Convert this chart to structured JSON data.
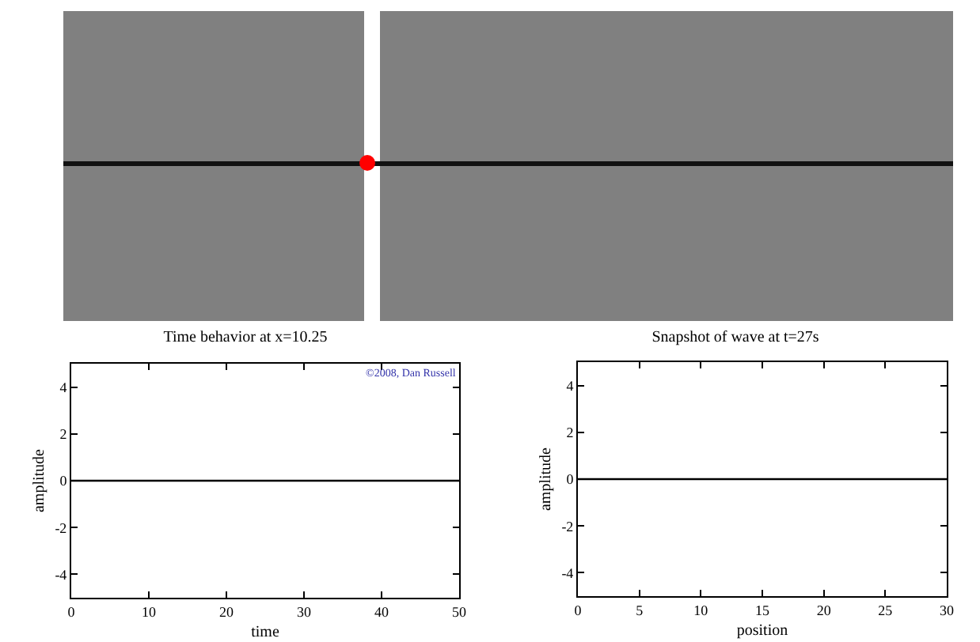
{
  "chart_data": [
    {
      "type": "line",
      "title": "Time behavior at x=10.25",
      "xlabel": "time",
      "ylabel": "amplitude",
      "x": [
        0,
        50
      ],
      "series": [
        {
          "color": "#000000",
          "values": [
            0,
            0
          ]
        }
      ],
      "xlim": [
        0,
        50
      ],
      "xticks": [
        0,
        10,
        20,
        30,
        40,
        50
      ],
      "ylim": [
        -5,
        5
      ],
      "yticks": [
        -4,
        -2,
        0,
        2,
        4
      ],
      "grid": false,
      "marker": "none",
      "line_style": "solid",
      "annotations": [
        "©2008, Dan Russell"
      ]
    },
    {
      "type": "line",
      "title": "Snapshot of wave at t=27s",
      "xlabel": "position",
      "ylabel": "amplitude",
      "x": [
        0,
        30
      ],
      "series": [
        {
          "color": "#000000",
          "values": [
            0,
            0
          ]
        }
      ],
      "xlim": [
        0,
        30
      ],
      "xticks": [
        0,
        5,
        10,
        15,
        20,
        25,
        30
      ],
      "ylim": [
        -5,
        5
      ],
      "yticks": [
        -4,
        -2,
        0,
        2,
        4
      ],
      "grid": false,
      "marker": "none",
      "line_style": "solid"
    }
  ]
}
